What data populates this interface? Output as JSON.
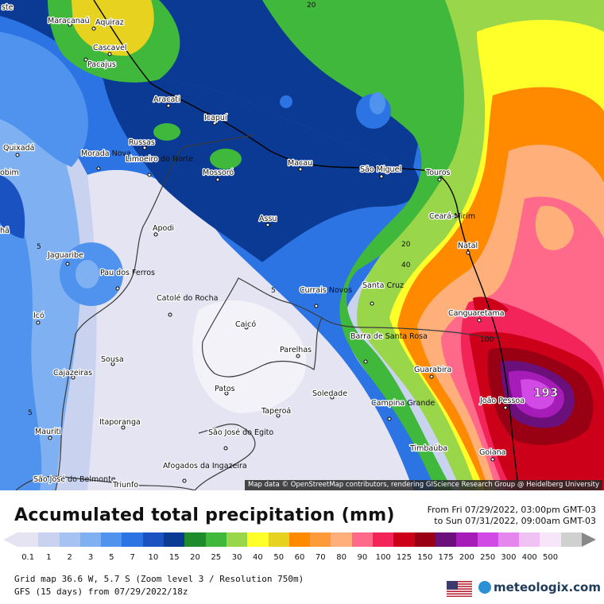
{
  "map": {
    "attribution": "Map data © OpenStreetMap contributors, rendering GIScience Research Group @ Heidelberg University",
    "max_value_label": "193",
    "cities": [
      {
        "name": "ste"
      },
      {
        "name": "Maracanaú"
      },
      {
        "name": "Aquiraz"
      },
      {
        "name": "Cascavel"
      },
      {
        "name": "Pacajus"
      },
      {
        "name": "Aracati"
      },
      {
        "name": "Icapuí"
      },
      {
        "name": "Quixadá"
      },
      {
        "name": "Russas"
      },
      {
        "name": "Morada Nova"
      },
      {
        "name": "Limoeiro do Norte"
      },
      {
        "name": "Mossoró"
      },
      {
        "name": "Macau"
      },
      {
        "name": "São Miguel"
      },
      {
        "name": "Touros"
      },
      {
        "name": "obim"
      },
      {
        "name": "Ceará-Mirim"
      },
      {
        "name": "Natal"
      },
      {
        "name": "Assu"
      },
      {
        "name": "Apodi"
      },
      {
        "name": "hã"
      },
      {
        "name": "Jaguaribe"
      },
      {
        "name": "Pau dos Ferros"
      },
      {
        "name": "Santa Cruz"
      },
      {
        "name": "Currais Novos"
      },
      {
        "name": "Catolé do Rocha"
      },
      {
        "name": "Canguaretama"
      },
      {
        "name": "Icó"
      },
      {
        "name": "Caicó"
      },
      {
        "name": "Barra de Santa Rosa"
      },
      {
        "name": "Parelhas"
      },
      {
        "name": "Sousa"
      },
      {
        "name": "Cajazeiras"
      },
      {
        "name": "Guarabira"
      },
      {
        "name": "Patos"
      },
      {
        "name": "Soledade"
      },
      {
        "name": "João Pessoa"
      },
      {
        "name": "Campina Grande"
      },
      {
        "name": "Taperoá"
      },
      {
        "name": "Itaporanga"
      },
      {
        "name": "Mauriti"
      },
      {
        "name": "São José do Egito"
      },
      {
        "name": "Timbaúba"
      },
      {
        "name": "Goiana"
      },
      {
        "name": "Afogados da Ingazeira"
      },
      {
        "name": "São José do Belmonte"
      },
      {
        "name": "Triunfo"
      }
    ],
    "contour_labels": [
      "20",
      "20",
      "40",
      "5",
      "5",
      "5",
      "100"
    ]
  },
  "title": "Accumulated total precipitation (mm)",
  "period": {
    "from": "From Fri 07/29/2022, 03:00pm GMT-03",
    "to": "to Sun 07/31/2022, 09:00am GMT-03"
  },
  "legend": {
    "unit": "mm",
    "items": [
      {
        "label": "0.1",
        "color": "#e4e4f2"
      },
      {
        "label": "1",
        "color": "#c9d3f0"
      },
      {
        "label": "2",
        "color": "#a6c2f2"
      },
      {
        "label": "3",
        "color": "#7fb0f2"
      },
      {
        "label": "5",
        "color": "#4f93ee"
      },
      {
        "label": "7",
        "color": "#2c74e3"
      },
      {
        "label": "10",
        "color": "#1a52c2"
      },
      {
        "label": "15",
        "color": "#0b3a95"
      },
      {
        "label": "20",
        "color": "#1f8c2c"
      },
      {
        "label": "25",
        "color": "#3fb83c"
      },
      {
        "label": "30",
        "color": "#9ad64a"
      },
      {
        "label": "40",
        "color": "#ffff2a"
      },
      {
        "label": "50",
        "color": "#e7d21f"
      },
      {
        "label": "60",
        "color": "#ff8a00"
      },
      {
        "label": "70",
        "color": "#ff9a38"
      },
      {
        "label": "80",
        "color": "#ffb07a"
      },
      {
        "label": "90",
        "color": "#ff6a8a"
      },
      {
        "label": "100",
        "color": "#f2245a"
      },
      {
        "label": "125",
        "color": "#cc0018"
      },
      {
        "label": "150",
        "color": "#9a0013"
      },
      {
        "label": "175",
        "color": "#6b0f7a"
      },
      {
        "label": "200",
        "color": "#a51cb8"
      },
      {
        "label": "250",
        "color": "#d14ae6"
      },
      {
        "label": "300",
        "color": "#e586f0"
      },
      {
        "label": "400",
        "color": "#f0c2f4"
      },
      {
        "label": "500",
        "color": "#f7e6fa"
      },
      {
        "label": "",
        "color": "#d0d0d0"
      }
    ]
  },
  "meta": {
    "grid": "Grid map 36.6 W, 5.7 S (Zoom level 3 / Resolution 750m)",
    "model": "GFS (15 days) from 07/29/2022/18z"
  },
  "brand": {
    "name": "meteologix.com",
    "flag_icon": "us-flag-icon",
    "logo_icon": "meteologix-logo-icon"
  }
}
